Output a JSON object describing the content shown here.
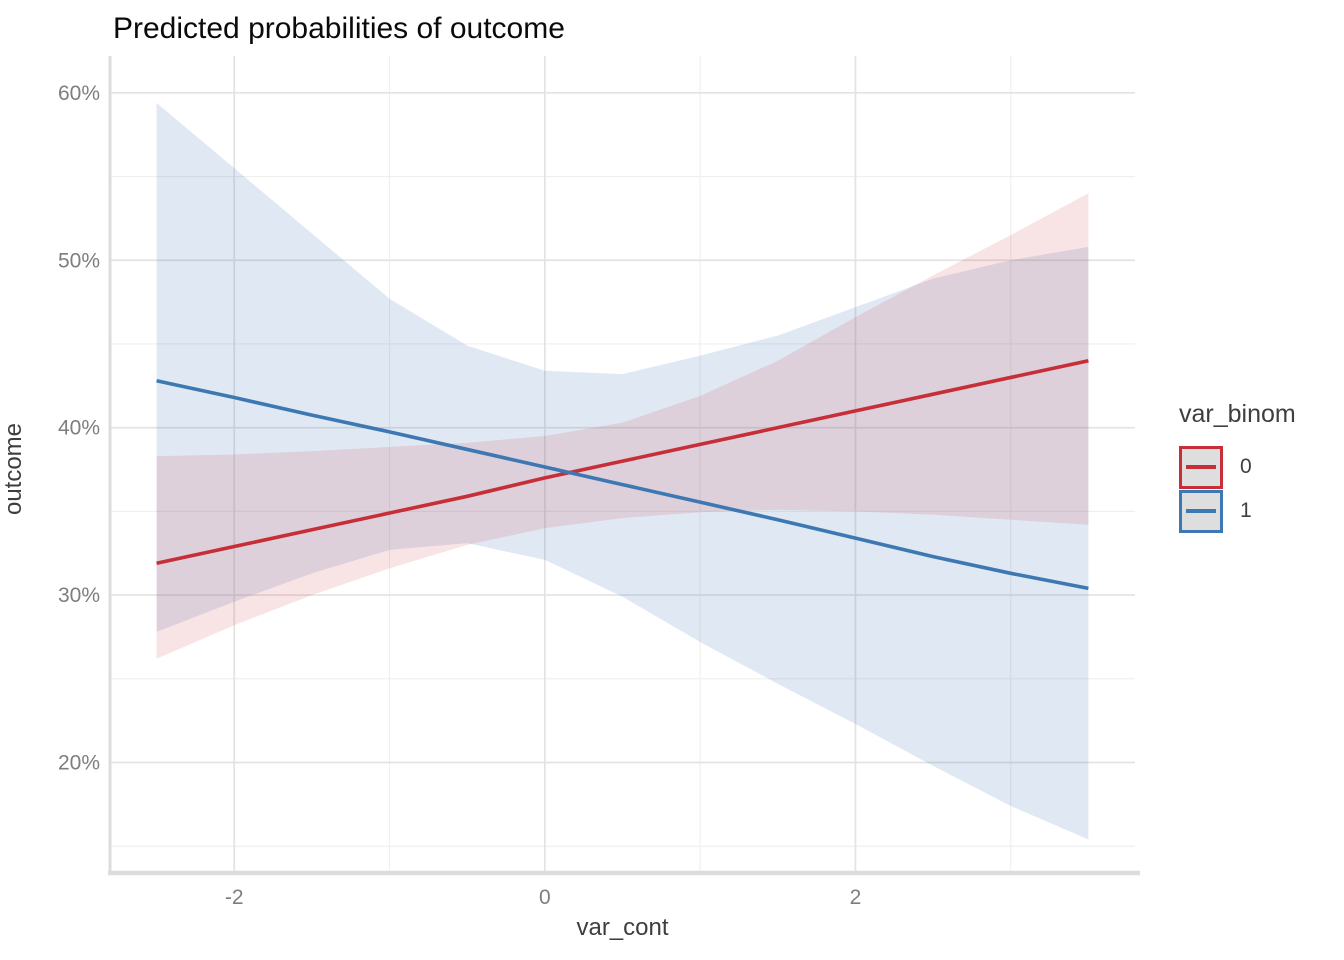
{
  "title": "Predicted probabilities of outcome",
  "axes": {
    "x": {
      "label": "var_cont",
      "range": [
        -2.8,
        3.8
      ],
      "major_ticks": [
        {
          "value": -2,
          "label": "-2"
        },
        {
          "value": 0,
          "label": "0"
        },
        {
          "value": 2,
          "label": "2"
        }
      ],
      "minor_ticks": [
        -1,
        1,
        3
      ]
    },
    "y": {
      "label": "outcome",
      "range": [
        13.4,
        62.2
      ],
      "major_ticks": [
        {
          "value": 20,
          "label": "20%"
        },
        {
          "value": 30,
          "label": "30%"
        },
        {
          "value": 40,
          "label": "40%"
        },
        {
          "value": 50,
          "label": "50%"
        },
        {
          "value": 60,
          "label": "60%"
        }
      ],
      "minor_ticks": [
        15,
        25,
        35,
        45,
        55
      ]
    }
  },
  "legend": {
    "title": "var_binom",
    "entries": [
      {
        "label": "0",
        "color": "#c62f38"
      },
      {
        "label": "1",
        "color": "#3e78b2"
      }
    ]
  },
  "colors": {
    "red_line": "#c62f38",
    "blue_line": "#3e78b2",
    "red_ribbon_opacity": 0.13,
    "blue_ribbon_opacity": 0.16,
    "grid_major": "#e3e3e3",
    "grid_minor": "#efefef",
    "axis_line": "#dcdcdc",
    "tick_label": "#7e7e7e",
    "axis_title": "#3e3e3e",
    "title": "#0a0a0a",
    "legend_key_fill": "#dedede"
  },
  "chart_data": {
    "type": "line",
    "title": "Predicted probabilities of outcome",
    "xlabel": "var_cont",
    "ylabel": "outcome",
    "y_unit": "percent",
    "xlim": [
      -2.8,
      3.8
    ],
    "ylim": [
      13.4,
      62.2
    ],
    "grid": true,
    "legend_position": "right",
    "legend_title": "var_binom",
    "x": [
      -2.5,
      -2,
      -1.5,
      -1,
      -0.5,
      0,
      0.5,
      1,
      1.5,
      2,
      2.5,
      3,
      3.5
    ],
    "series": [
      {
        "name": "0",
        "color": "#c62f38",
        "predicted": [
          31.9,
          32.9,
          33.9,
          34.9,
          35.9,
          37.0,
          38.0,
          39.0,
          40.0,
          41.0,
          42.0,
          43.0,
          44.0
        ],
        "conf_low": [
          26.2,
          28.2,
          30.0,
          31.6,
          33.0,
          34.0,
          34.6,
          34.95,
          35.1,
          35.0,
          34.8,
          34.5,
          34.2
        ],
        "conf_high": [
          38.3,
          38.4,
          38.6,
          38.85,
          39.1,
          39.5,
          40.3,
          41.9,
          44.0,
          46.6,
          49.1,
          51.5,
          54.0
        ]
      },
      {
        "name": "1",
        "color": "#3e78b2",
        "predicted": [
          42.8,
          41.8,
          40.75,
          39.75,
          38.7,
          37.65,
          36.6,
          35.55,
          34.5,
          33.4,
          32.3,
          31.3,
          30.4
        ],
        "conf_low": [
          27.8,
          29.6,
          31.3,
          32.7,
          33.1,
          32.1,
          29.9,
          27.2,
          24.7,
          22.3,
          19.8,
          17.4,
          15.4
        ],
        "conf_high": [
          59.4,
          55.5,
          51.6,
          47.7,
          44.9,
          43.4,
          43.2,
          44.3,
          45.5,
          47.2,
          48.9,
          50.0,
          50.8
        ]
      }
    ]
  }
}
